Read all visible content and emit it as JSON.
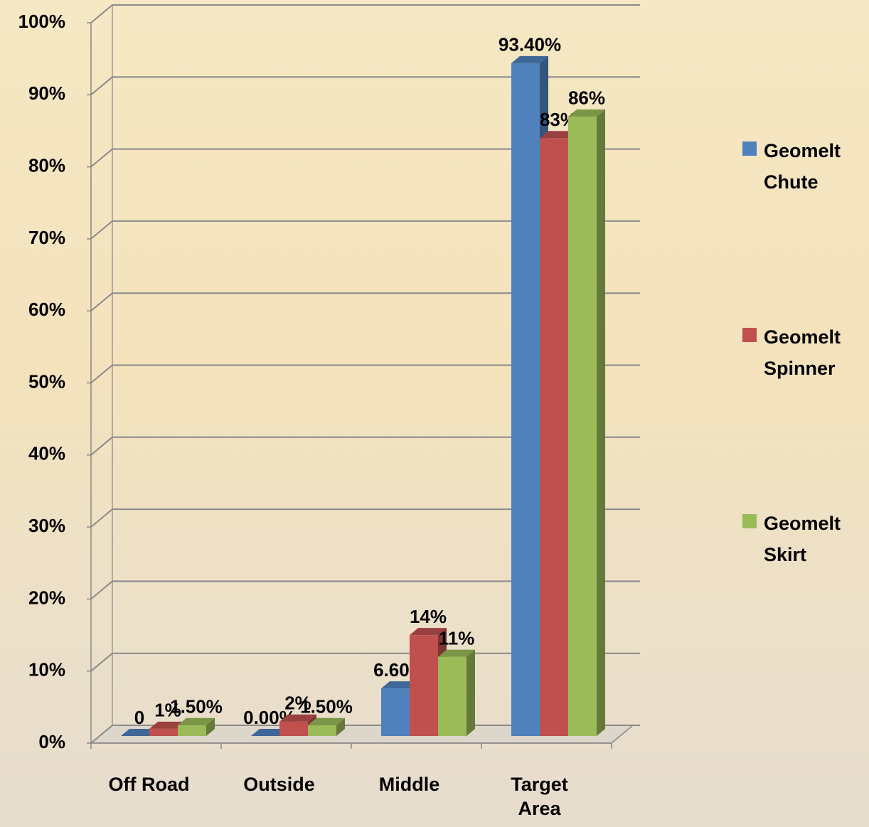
{
  "chart_data": {
    "type": "bar3d",
    "categories": [
      "Off Road",
      "Outside",
      "Middle",
      "Target Area"
    ],
    "series": [
      {
        "name": "Geomelt Chute",
        "color": "#4f81bd",
        "values": [
          0,
          0,
          6.6,
          93.4
        ],
        "value_labels": [
          "0",
          "0.00%",
          "6.60%",
          "93.40%"
        ]
      },
      {
        "name": "Geomelt Spinner",
        "color": "#c0504d",
        "values": [
          1,
          2,
          14,
          83
        ],
        "value_labels": [
          "1%",
          "2%",
          "14%",
          "83%"
        ]
      },
      {
        "name": "Geomelt Skirt",
        "color": "#9bbb59",
        "values": [
          1.5,
          1.5,
          11,
          86
        ],
        "value_labels": [
          "1.50%",
          "1.50%",
          "11%",
          "86%"
        ]
      }
    ],
    "ylim": [
      0,
      100
    ],
    "yticks": [
      {
        "value": 0,
        "label": "0%"
      },
      {
        "value": 10,
        "label": "10%"
      },
      {
        "value": 20,
        "label": "20%"
      },
      {
        "value": 30,
        "label": "30%"
      },
      {
        "value": 40,
        "label": "40%"
      },
      {
        "value": 50,
        "label": "50%"
      },
      {
        "value": 60,
        "label": "60%"
      },
      {
        "value": 70,
        "label": "70%"
      },
      {
        "value": 80,
        "label": "80%"
      },
      {
        "value": 90,
        "label": "90%"
      },
      {
        "value": 100,
        "label": "100%"
      }
    ],
    "grid": true
  }
}
